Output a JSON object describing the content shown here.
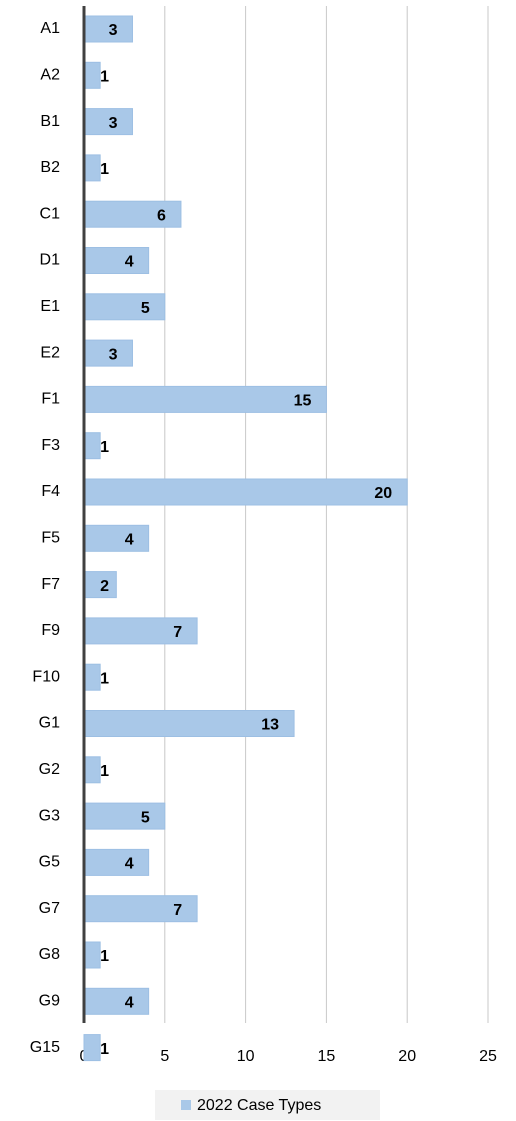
{
  "chart_data": {
    "type": "bar",
    "orientation": "horizontal",
    "categories": [
      "A1",
      "A2",
      "B1",
      "B2",
      "C1",
      "D1",
      "E1",
      "E2",
      "F1",
      "F3",
      "F4",
      "F5",
      "F7",
      "F9",
      "F10",
      "G1",
      "G2",
      "G3",
      "G5",
      "G7",
      "G8",
      "G9",
      "G15"
    ],
    "series": [
      {
        "name": "2022 Case Types",
        "color": "#a9c8e8",
        "values": [
          3,
          1,
          3,
          1,
          6,
          4,
          5,
          3,
          15,
          1,
          20,
          4,
          2,
          7,
          1,
          13,
          1,
          5,
          4,
          7,
          1,
          4,
          1
        ]
      }
    ],
    "xlim": [
      0,
      25
    ],
    "xticks": [
      0,
      5,
      10,
      15,
      20,
      25
    ],
    "grid": true,
    "legend": "bottom"
  }
}
